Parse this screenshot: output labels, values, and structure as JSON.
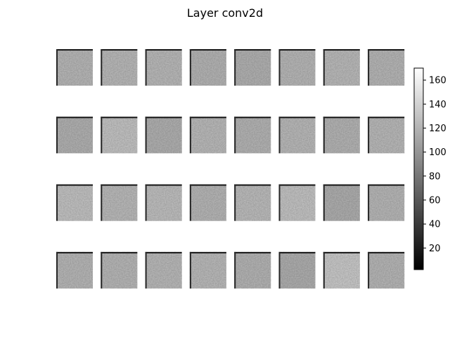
{
  "chart_data": {
    "type": "heatmap",
    "title": "Layer conv2d",
    "colormap": "gray",
    "grid": {
      "rows": 4,
      "cols": 8
    },
    "value_range": [
      2,
      170
    ],
    "colorbar": {
      "ticks": [
        20,
        40,
        60,
        80,
        100,
        120,
        140,
        160
      ],
      "tick_labels": [
        "20",
        "40",
        "60",
        "80",
        "100",
        "120",
        "140",
        "160"
      ]
    },
    "feature_map_means": [
      [
        126,
        127,
        127,
        124,
        122,
        126,
        128,
        125
      ],
      [
        122,
        134,
        121,
        128,
        124,
        127,
        124,
        127
      ],
      [
        133,
        128,
        131,
        125,
        129,
        134,
        120,
        126
      ],
      [
        126,
        126,
        127,
        128,
        124,
        120,
        138,
        125
      ]
    ],
    "axis_visible": false
  }
}
